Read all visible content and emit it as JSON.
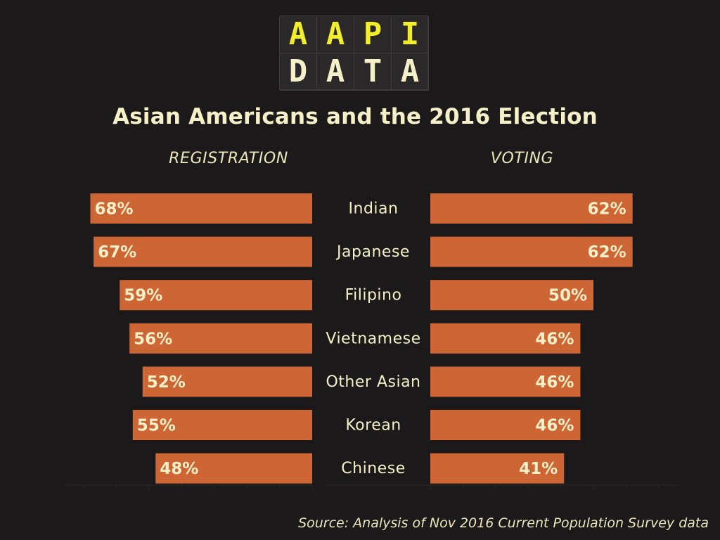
{
  "logo": {
    "top_letters": [
      "A",
      "A",
      "P",
      "I"
    ],
    "bottom_letters": [
      "D",
      "A",
      "T",
      "A"
    ],
    "top_color": "#f2ee2a",
    "bottom_color": "#f6f0c8"
  },
  "colors": {
    "background": "#1b1919",
    "bar": "#cd6535",
    "text": "#f6f0c8",
    "axis": "#2a2727"
  },
  "chart_data": [
    {
      "type": "bar",
      "orientation": "horizontal",
      "direction": "right-to-left",
      "title": "REGISTRATION",
      "categories": [
        "Indian",
        "Japanese",
        "Filipino",
        "Vietnamese",
        "Other Asian",
        "Korean",
        "Chinese"
      ],
      "values": [
        68,
        67,
        59,
        56,
        52,
        55,
        48
      ],
      "data_labels": [
        "68%",
        "67%",
        "59%",
        "56%",
        "52%",
        "55%",
        "48%"
      ],
      "unit": "%",
      "xlim": [
        0,
        75
      ],
      "grid": false
    },
    {
      "type": "bar",
      "orientation": "horizontal",
      "direction": "left-to-right",
      "title": "VOTING",
      "categories": [
        "Indian",
        "Japanese",
        "Filipino",
        "Vietnamese",
        "Other Asian",
        "Korean",
        "Chinese"
      ],
      "values": [
        62,
        62,
        50,
        46,
        46,
        46,
        41
      ],
      "data_labels": [
        "62%",
        "62%",
        "50%",
        "46%",
        "46%",
        "46%",
        "41%"
      ],
      "unit": "%",
      "xlim": [
        0,
        75
      ],
      "grid": false
    }
  ],
  "title": "Asian Americans and the 2016 Election",
  "source": "Source: Analysis of Nov 2016 Current Population Survey data"
}
